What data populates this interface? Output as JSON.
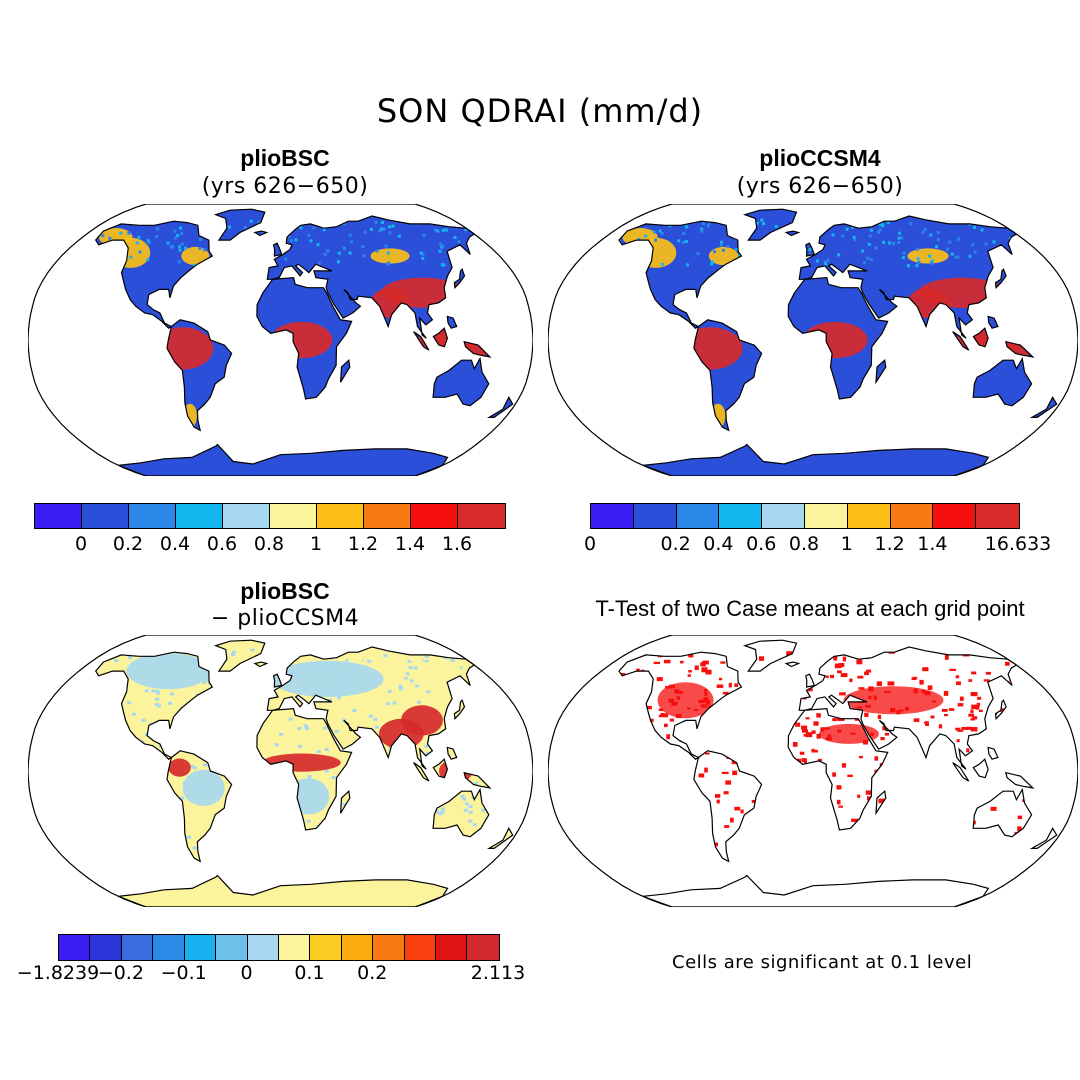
{
  "title": "SON QDRAI (mm/d)",
  "panels": [
    {
      "id": "top-left",
      "title": "plioBSC",
      "subtitle": "(yrs 626−650)",
      "fill": "runoff",
      "colorbar": {
        "colors": [
          "#3b1cf2",
          "#2b4fd9",
          "#2a87e8",
          "#14b6ef",
          "#a8d8f0",
          "#fbf49c",
          "#fbbf16",
          "#f97a12",
          "#f60f0c",
          "#d62a2b"
        ],
        "labels": [
          "0",
          "0.2",
          "0.4",
          "0.6",
          "0.8",
          "1",
          "1.2",
          "1.4",
          "1.6"
        ]
      }
    },
    {
      "id": "top-right",
      "title": "plioCCSM4",
      "subtitle": "(yrs 626−650)",
      "fill": "runoff",
      "colorbar": {
        "colors": [
          "#3b1cf2",
          "#2b4fd9",
          "#2a87e8",
          "#14b6ef",
          "#a8d8f0",
          "#fbf49c",
          "#fbbf16",
          "#f97a12",
          "#f60f0c",
          "#d62a2b"
        ],
        "labels": [
          "0",
          "0.2",
          "0.4",
          "0.6",
          "0.8",
          "1",
          "1.2",
          "1.4",
          "16.633"
        ]
      }
    },
    {
      "id": "bottom-left",
      "title": "plioBSC",
      "subtitle": "− plioCCSM4",
      "fill": "difference",
      "colorbar": {
        "colors": [
          "#3b1cf2",
          "#2b34d9",
          "#3b6ddf",
          "#2a8ae6",
          "#19b0ef",
          "#6cc0ea",
          "#a8d8f0",
          "#fbf49c",
          "#fbcd22",
          "#fbaa10",
          "#f97a12",
          "#f7400d",
          "#e11414",
          "#d02a2e"
        ],
        "labels": [
          "−1.8239",
          "−0.2",
          "−0.1",
          "0",
          "0.1",
          "0.2",
          "2.113"
        ]
      }
    },
    {
      "id": "bottom-right",
      "title": "T-Test of two Case means at each grid point",
      "fill": "significance",
      "note": "Cells are significant at 0.1 level"
    }
  ],
  "colors": {
    "ocean": "#ffffff",
    "land_low": "#2b4fd9",
    "wet": "#d62a2b",
    "wet2": "#f60f0c",
    "mid": "#fbbf16",
    "diff_land": "#fbf49c",
    "diff_light": "#a8d8f0",
    "sig": "#f60f0c"
  }
}
